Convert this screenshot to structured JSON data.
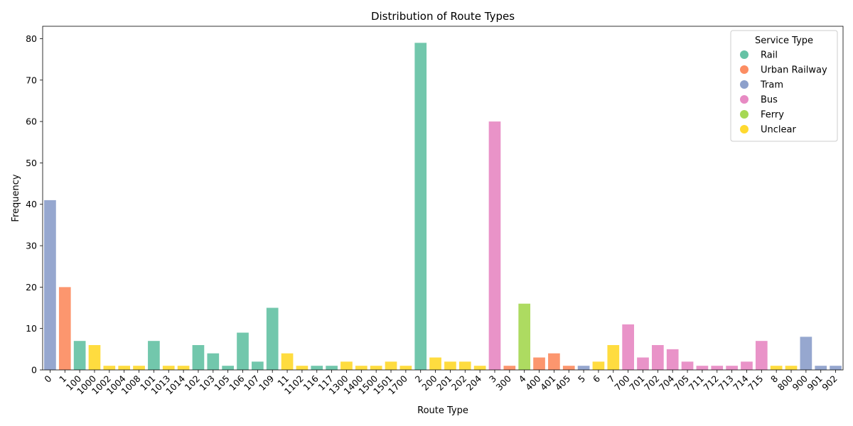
{
  "chart_data": {
    "type": "bar",
    "title": "Distribution of Route Types",
    "xlabel": "Route Type",
    "ylabel": "Frequency",
    "ylim": [
      0,
      83
    ],
    "yticks": [
      0,
      10,
      20,
      30,
      40,
      50,
      60,
      70,
      80
    ],
    "grid": false,
    "legend": {
      "title": "Service Type",
      "placement": "top-right",
      "entries": [
        {
          "name": "Rail",
          "color": "#66c2a5"
        },
        {
          "name": "Urban Railway",
          "color": "#fc8d62"
        },
        {
          "name": "Tram",
          "color": "#8da0cb"
        },
        {
          "name": "Bus",
          "color": "#e78ac3"
        },
        {
          "name": "Ferry",
          "color": "#a6d854"
        },
        {
          "name": "Unclear",
          "color": "#ffd92f"
        }
      ]
    },
    "categories": [
      "0",
      "1",
      "100",
      "1000",
      "1002",
      "1004",
      "1008",
      "101",
      "1013",
      "1014",
      "102",
      "103",
      "105",
      "106",
      "107",
      "109",
      "11",
      "1102",
      "116",
      "117",
      "1300",
      "1400",
      "1500",
      "1501",
      "1700",
      "2",
      "200",
      "201",
      "202",
      "204",
      "3",
      "300",
      "4",
      "400",
      "401",
      "405",
      "5",
      "6",
      "7",
      "700",
      "701",
      "702",
      "704",
      "705",
      "711",
      "712",
      "713",
      "714",
      "715",
      "8",
      "800",
      "900",
      "901",
      "902"
    ],
    "values": [
      41,
      20,
      7,
      6,
      1,
      1,
      1,
      7,
      1,
      1,
      6,
      4,
      1,
      9,
      2,
      15,
      4,
      1,
      1,
      1,
      2,
      1,
      1,
      2,
      1,
      79,
      3,
      2,
      2,
      1,
      60,
      1,
      16,
      3,
      4,
      1,
      1,
      2,
      6,
      11,
      3,
      6,
      5,
      2,
      1,
      1,
      1,
      2,
      7,
      1,
      1,
      8,
      1,
      1
    ],
    "service_types": [
      "Tram",
      "Urban Railway",
      "Rail",
      "Unclear",
      "Unclear",
      "Unclear",
      "Unclear",
      "Rail",
      "Unclear",
      "Unclear",
      "Rail",
      "Rail",
      "Rail",
      "Rail",
      "Rail",
      "Rail",
      "Unclear",
      "Unclear",
      "Rail",
      "Rail",
      "Unclear",
      "Unclear",
      "Unclear",
      "Unclear",
      "Unclear",
      "Rail",
      "Unclear",
      "Unclear",
      "Unclear",
      "Unclear",
      "Bus",
      "Urban Railway",
      "Ferry",
      "Urban Railway",
      "Urban Railway",
      "Urban Railway",
      "Tram",
      "Unclear",
      "Unclear",
      "Bus",
      "Bus",
      "Bus",
      "Bus",
      "Bus",
      "Bus",
      "Bus",
      "Bus",
      "Bus",
      "Bus",
      "Unclear",
      "Unclear",
      "Tram",
      "Tram",
      "Tram"
    ]
  }
}
